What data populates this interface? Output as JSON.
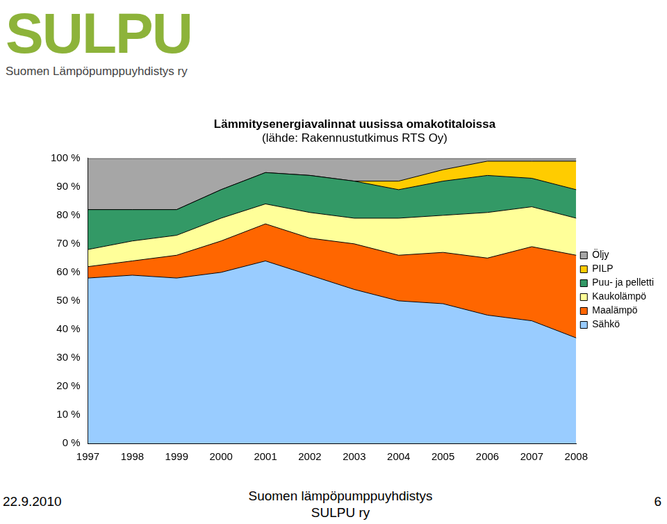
{
  "page": {
    "logo": "SULPU",
    "organization": "Suomen Lämpöpumppuyhdistys ry",
    "footer": {
      "date": "22.9.2010",
      "center": [
        "Suomen lämpöpumppuyhdistys",
        "SULPU ry"
      ],
      "page": "6"
    }
  },
  "chart_data": {
    "type": "area",
    "title": "Lämmitysenergiavalinnat uusissa omakotitaloissa",
    "subtitle": "(lähde: Rakennustutkimus RTS Oy)",
    "categories": [
      "1997",
      "1998",
      "1999",
      "2000",
      "2001",
      "2002",
      "2003",
      "2004",
      "2005",
      "2006",
      "2007",
      "2008"
    ],
    "series": [
      {
        "name": "Sähkö",
        "color": "#99ccff",
        "values": [
          58,
          59,
          58,
          60,
          64,
          59,
          54,
          50,
          49,
          45,
          43,
          37
        ]
      },
      {
        "name": "Maalämpö",
        "color": "#ff6600",
        "values": [
          4,
          5,
          8,
          11,
          13,
          13,
          16,
          16,
          18,
          20,
          26,
          29
        ]
      },
      {
        "name": "Kaukolämpö",
        "color": "#ffff99",
        "values": [
          6,
          7,
          7,
          8,
          7,
          9,
          9,
          13,
          13,
          16,
          14,
          13
        ]
      },
      {
        "name": "Puu- ja pelletti",
        "color": "#339966",
        "values": [
          14,
          11,
          9,
          10,
          11,
          13,
          13,
          10,
          12,
          13,
          10,
          10
        ]
      },
      {
        "name": "PILP",
        "color": "#ffcc00",
        "values": [
          0,
          0,
          0,
          0,
          0,
          0,
          0,
          3,
          4,
          5,
          6,
          10
        ]
      },
      {
        "name": "Öljy",
        "color": "#a6a6a6",
        "values": [
          18,
          18,
          18,
          11,
          5,
          6,
          8,
          8,
          4,
          1,
          1,
          1
        ]
      }
    ],
    "ylim": [
      0,
      100
    ],
    "yticks": [
      {
        "value": 0,
        "label": "0 %"
      },
      {
        "value": 10,
        "label": "10 %"
      },
      {
        "value": 20,
        "label": "20 %"
      },
      {
        "value": 30,
        "label": "30 %"
      },
      {
        "value": 40,
        "label": "40 %"
      },
      {
        "value": 50,
        "label": "50 %"
      },
      {
        "value": 60,
        "label": "60 %"
      },
      {
        "value": 70,
        "label": "70 %"
      },
      {
        "value": 80,
        "label": "80 %"
      },
      {
        "value": 90,
        "label": "90 %"
      },
      {
        "value": 100,
        "label": "100 %"
      }
    ],
    "stacked": true,
    "grid": false,
    "legend": "right"
  }
}
